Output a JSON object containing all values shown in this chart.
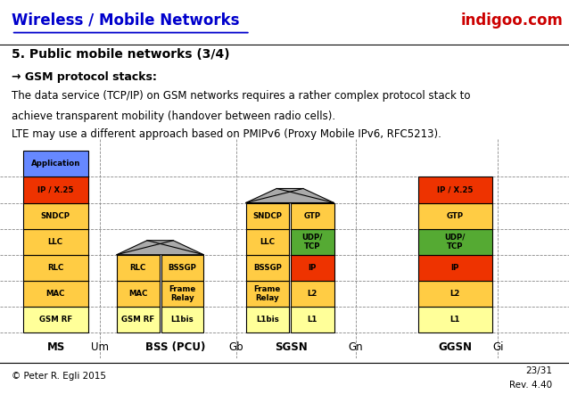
{
  "title": "Wireless / Mobile Networks",
  "brand": "indigoo.com",
  "subtitle": "5. Public mobile networks (3/4)",
  "bullet0": "5. Public mobile networks (3/4)",
  "bullet1": "→ GSM protocol stacks:",
  "bullet2": "The data service (TCP/IP) on GSM networks requires a rather complex protocol stack to",
  "bullet3": "achieve transparent mobility (handover between radio cells).",
  "bullet4": "LTE may use a different approach based on PMIPv6 (Proxy Mobile IPv6, RFC5213).",
  "footer_left": "© Peter R. Egli 2015",
  "footer_right1": "23/31",
  "footer_right2": "Rev. 4.40",
  "colors": {
    "blue_light": "#6699ff",
    "orange_red": "#ee3300",
    "orange": "#ffaa00",
    "yellow": "#ffcc44",
    "light_yellow": "#ffff99",
    "green": "#55aa33",
    "gray": "#aaaaaa",
    "bg": "#ffffff",
    "title_blue": "#0000cc",
    "brand_red": "#cc0000",
    "title_bg": "#dddddd"
  },
  "ms_layers": [
    {
      "label": "Application",
      "color": "#6688ff"
    },
    {
      "label": "IP / X.25",
      "color": "#ee3300"
    },
    {
      "label": "SNDCP",
      "color": "#ffcc44"
    },
    {
      "label": "LLC",
      "color": "#ffcc44"
    },
    {
      "label": "RLC",
      "color": "#ffcc44"
    },
    {
      "label": "MAC",
      "color": "#ffcc44"
    },
    {
      "label": "GSM RF",
      "color": "#ffff99"
    }
  ],
  "bss_left_layers": [
    {
      "label": "RLC",
      "color": "#ffcc44"
    },
    {
      "label": "MAC",
      "color": "#ffcc44"
    },
    {
      "label": "GSM RF",
      "color": "#ffff99"
    }
  ],
  "bss_right_layers": [
    {
      "label": "BSSGP",
      "color": "#ffcc44"
    },
    {
      "label": "Frame\nRelay",
      "color": "#ffcc44"
    },
    {
      "label": "L1bis",
      "color": "#ffff99"
    }
  ],
  "sgsn_left_layers": [
    {
      "label": "SNDCP",
      "color": "#ffcc44"
    },
    {
      "label": "LLC",
      "color": "#ffcc44"
    },
    {
      "label": "BSSGP",
      "color": "#ffcc44"
    },
    {
      "label": "Frame\nRelay",
      "color": "#ffcc44"
    },
    {
      "label": "L1bis",
      "color": "#ffff99"
    }
  ],
  "sgsn_right_layers": [
    {
      "label": "GTP",
      "color": "#ffcc44"
    },
    {
      "label": "UDP/\nTCP",
      "color": "#55aa33"
    },
    {
      "label": "IP",
      "color": "#ee3300"
    },
    {
      "label": "L2",
      "color": "#ffcc44"
    },
    {
      "label": "L1",
      "color": "#ffff99"
    }
  ],
  "ggsn_layers": [
    {
      "label": "IP / X.25",
      "color": "#ee3300"
    },
    {
      "label": "GTP",
      "color": "#ffcc44"
    },
    {
      "label": "UDP/\nTCP",
      "color": "#55aa33"
    },
    {
      "label": "IP",
      "color": "#ee3300"
    },
    {
      "label": "L2",
      "color": "#ffcc44"
    },
    {
      "label": "L1",
      "color": "#ffff99"
    }
  ]
}
